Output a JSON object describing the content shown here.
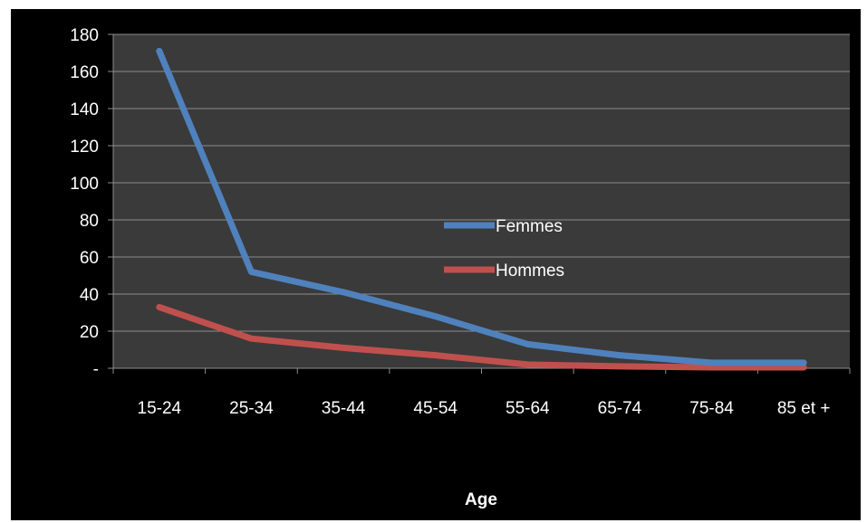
{
  "chart_data": {
    "type": "line",
    "title": "",
    "xlabel": "Age",
    "ylabel": "",
    "categories": [
      "15-24",
      "25-34",
      "35-44",
      "45-54",
      "55-64",
      "65-74",
      "75-84",
      "85 et +"
    ],
    "ylim": [
      0,
      180
    ],
    "yticks": [
      {
        "value": 0,
        "label": "-"
      },
      {
        "value": 20,
        "label": "20"
      },
      {
        "value": 40,
        "label": "40"
      },
      {
        "value": 60,
        "label": "60"
      },
      {
        "value": 80,
        "label": "80"
      },
      {
        "value": 100,
        "label": "100"
      },
      {
        "value": 120,
        "label": "120"
      },
      {
        "value": 140,
        "label": "140"
      },
      {
        "value": 160,
        "label": "160"
      },
      {
        "value": 180,
        "label": "180"
      }
    ],
    "grid": true,
    "legend_position": "center",
    "series": [
      {
        "name": "Femmes",
        "color": "#4f81bd",
        "values": [
          171,
          52,
          41,
          28,
          13,
          7,
          3,
          3
        ]
      },
      {
        "name": "Hommes",
        "color": "#c0504d",
        "values": [
          33,
          16,
          11,
          7,
          2,
          1,
          0.5,
          0.5
        ]
      }
    ],
    "colors": {
      "background": "#000000",
      "plot_area": "#3a3a3a",
      "grid": "#8c8c8c",
      "text": "#ffffff"
    }
  }
}
